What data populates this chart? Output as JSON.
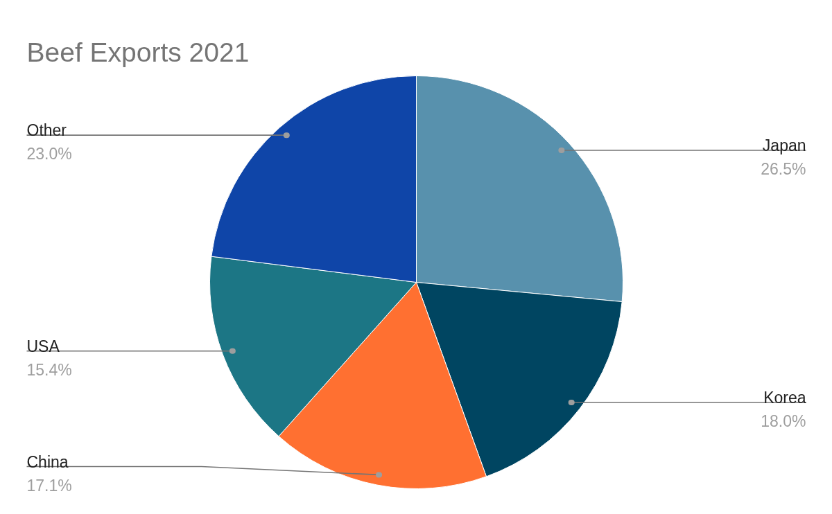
{
  "chart_data": {
    "type": "pie",
    "title": "Beef Exports 2021",
    "categories": [
      "Japan",
      "Korea",
      "China",
      "USA",
      "Other"
    ],
    "values": [
      26.5,
      18.0,
      17.1,
      15.4,
      23.0
    ],
    "colors": [
      "#5891ad",
      "#004561",
      "#ff7031",
      "#1c7685",
      "#0f45a8"
    ],
    "value_labels": [
      "26.5%",
      "18.0%",
      "17.1%",
      "15.4%",
      "23.0%"
    ]
  }
}
